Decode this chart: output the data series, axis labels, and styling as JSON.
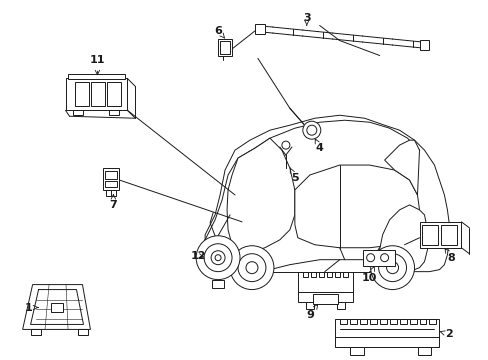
{
  "background_color": "#ffffff",
  "line_color": "#1a1a1a",
  "fig_width": 4.89,
  "fig_height": 3.6,
  "dpi": 100,
  "label_fontsize": 8.0,
  "lw": 0.7
}
